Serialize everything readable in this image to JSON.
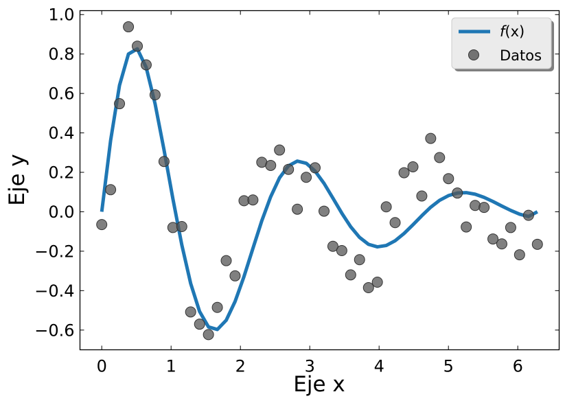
{
  "chart_data": {
    "type": "line",
    "title": "",
    "xlabel": "Eje x",
    "ylabel": "Eje y",
    "xlim": [
      -0.314,
      6.597
    ],
    "ylim": [
      -0.7,
      1.02
    ],
    "xticks": [
      0,
      1,
      2,
      3,
      4,
      5,
      6
    ],
    "xtick_labels": [
      "0",
      "1",
      "2",
      "3",
      "4",
      "5",
      "6"
    ],
    "yticks": [
      -0.6,
      -0.4,
      -0.2,
      0.0,
      0.2,
      0.4,
      0.6,
      0.8,
      1.0
    ],
    "ytick_labels": [
      "−0.6",
      "−0.4",
      "−0.2",
      "0.0",
      "0.2",
      "0.4",
      "0.6",
      "0.8",
      "1.0"
    ],
    "grid": false,
    "legend": {
      "placement": "top-right",
      "entries": [
        {
          "label_prefix": "f",
          "label_var": "(x)",
          "kind": "line"
        },
        {
          "label": "Datos",
          "kind": "marker"
        }
      ]
    },
    "colors": {
      "line": "#1f77b4",
      "marker_fill": "#555555",
      "marker_edge": "#333333"
    },
    "series": [
      {
        "kind": "line",
        "x": [
          0.0,
          0.128,
          0.256,
          0.385,
          0.513,
          0.641,
          0.769,
          0.898,
          1.026,
          1.154,
          1.282,
          1.411,
          1.539,
          1.667,
          1.795,
          1.923,
          2.052,
          2.18,
          2.308,
          2.436,
          2.564,
          2.693,
          2.821,
          2.949,
          3.077,
          3.206,
          3.334,
          3.462,
          3.59,
          3.718,
          3.847,
          3.975,
          4.103,
          4.231,
          4.36,
          4.488,
          4.616,
          4.744,
          4.872,
          5.001,
          5.129,
          5.257,
          5.385,
          5.514,
          5.642,
          5.77,
          5.898,
          6.026,
          6.155,
          6.283
        ],
        "y": [
          0.0,
          0.362,
          0.641,
          0.8,
          0.826,
          0.732,
          0.548,
          0.314,
          0.066,
          -0.167,
          -0.363,
          -0.506,
          -0.584,
          -0.597,
          -0.55,
          -0.455,
          -0.328,
          -0.186,
          -0.046,
          0.076,
          0.172,
          0.233,
          0.257,
          0.246,
          0.206,
          0.144,
          0.069,
          -0.007,
          -0.076,
          -0.13,
          -0.165,
          -0.178,
          -0.171,
          -0.147,
          -0.11,
          -0.066,
          -0.02,
          0.023,
          0.058,
          0.082,
          0.095,
          0.097,
          0.089,
          0.073,
          0.052,
          0.029,
          0.007,
          -0.012,
          -0.024,
          0.0
        ]
      },
      {
        "kind": "scatter",
        "x": [
          0.0,
          0.128,
          0.256,
          0.385,
          0.513,
          0.641,
          0.769,
          0.898,
          1.026,
          1.154,
          1.282,
          1.411,
          1.539,
          1.667,
          1.795,
          1.923,
          2.052,
          2.18,
          2.308,
          2.436,
          2.564,
          2.693,
          2.821,
          2.949,
          3.077,
          3.206,
          3.334,
          3.462,
          3.59,
          3.718,
          3.847,
          3.975,
          4.103,
          4.231,
          4.36,
          4.488,
          4.616,
          4.744,
          4.872,
          5.001,
          5.129,
          5.257,
          5.385,
          5.514,
          5.642,
          5.77,
          5.898,
          6.026,
          6.155,
          6.283
        ],
        "y": [
          -0.065,
          0.112,
          0.548,
          0.938,
          0.84,
          0.745,
          0.593,
          0.255,
          -0.08,
          -0.075,
          -0.508,
          -0.57,
          -0.623,
          -0.485,
          -0.248,
          -0.325,
          0.056,
          0.06,
          0.251,
          0.235,
          0.313,
          0.215,
          0.013,
          0.175,
          0.223,
          0.003,
          -0.175,
          -0.197,
          -0.32,
          -0.243,
          -0.385,
          -0.357,
          0.025,
          -0.055,
          0.198,
          0.228,
          0.08,
          0.372,
          0.275,
          0.168,
          0.095,
          -0.077,
          0.032,
          0.022,
          -0.138,
          -0.163,
          -0.08,
          -0.218,
          -0.018,
          -0.165
        ]
      }
    ]
  }
}
